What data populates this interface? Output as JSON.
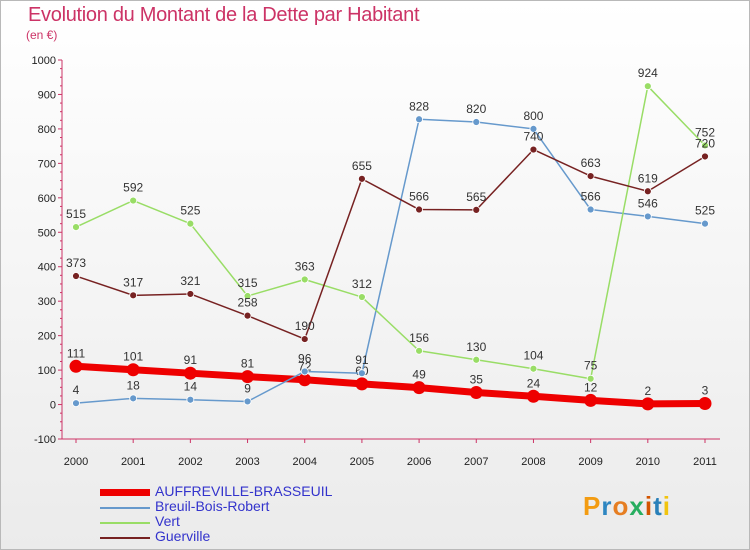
{
  "header": {
    "title": "Evolution du Montant de la Dette par Habitant",
    "subtitle": "(en €)"
  },
  "logo": {
    "letters": [
      "P",
      "r",
      "o",
      "x",
      "i",
      "t",
      "i"
    ],
    "colors": [
      "#f39c12",
      "#2e86c1",
      "#e67e22",
      "#27ae60",
      "#d35400",
      "#2980b9",
      "#f1c40f"
    ]
  },
  "chart_data": {
    "type": "line",
    "title": "Evolution du Montant de la Dette par Habitant",
    "ylabel": "(en €)",
    "xlabel": "",
    "x": [
      "2000",
      "2001",
      "2002",
      "2003",
      "2004",
      "2005",
      "2006",
      "2007",
      "2008",
      "2009",
      "2010",
      "2011"
    ],
    "ylim": [
      -100,
      1000
    ],
    "yticks": [
      "-100",
      "0",
      "100",
      "200",
      "300",
      "400",
      "500",
      "600",
      "700",
      "800",
      "900",
      "1000"
    ],
    "ytick_values": [
      -100,
      0,
      100,
      200,
      300,
      400,
      500,
      600,
      700,
      800,
      900,
      1000
    ],
    "grid": false,
    "legend_position": "bottom-left",
    "series": [
      {
        "name": "AUFFREVILLE-BRASSEUIL",
        "color": "#ee0000",
        "values": [
          111,
          101,
          91,
          81,
          72,
          60,
          49,
          35,
          24,
          12,
          2,
          3
        ],
        "labels": [
          "111",
          "101",
          "91",
          "81",
          "72",
          "60",
          "49",
          "35",
          "24",
          "12",
          "2",
          "3"
        ]
      },
      {
        "name": "Breuil-Bois-Robert",
        "color": "#6699cc",
        "values": [
          4,
          18,
          14,
          9,
          96,
          91,
          828,
          820,
          800,
          566,
          546,
          525
        ],
        "labels": [
          "4",
          "18",
          "14",
          "9",
          "96",
          "91",
          "828",
          "820",
          "800",
          "566",
          "546",
          "525"
        ]
      },
      {
        "name": "Vert",
        "color": "#99dd66",
        "values": [
          515,
          592,
          525,
          315,
          363,
          312,
          156,
          130,
          104,
          75,
          924,
          752
        ],
        "labels": [
          "515",
          "592",
          "525",
          "315",
          "363",
          "312",
          "156",
          "130",
          "104",
          "75",
          "924",
          "752"
        ]
      },
      {
        "name": "Guerville",
        "color": "#772222",
        "values": [
          373,
          317,
          321,
          258,
          190,
          655,
          566,
          565,
          740,
          663,
          619,
          720
        ],
        "labels": [
          "373",
          "317",
          "321",
          "258",
          "190",
          "655",
          "566",
          "565",
          "740",
          "663",
          "619",
          "720"
        ]
      }
    ]
  }
}
